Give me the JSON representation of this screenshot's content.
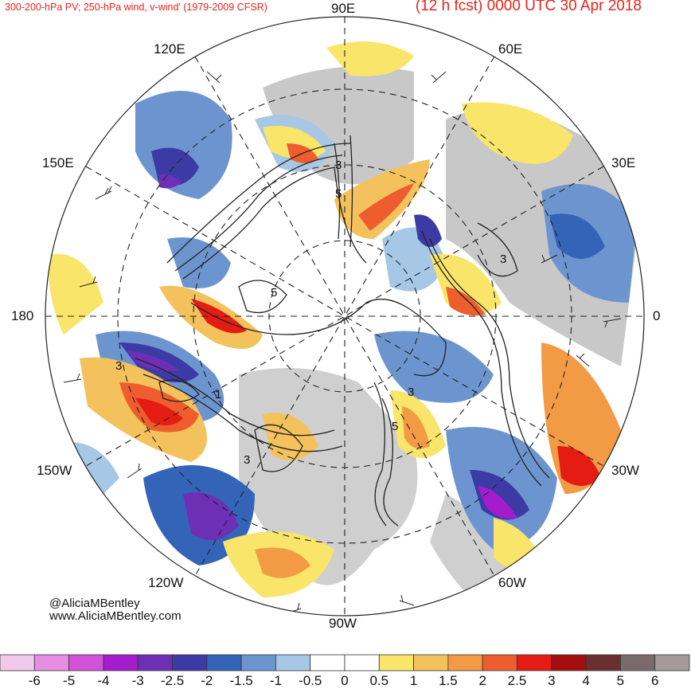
{
  "header": {
    "left_title": "300-200-hPa PV; 250-hPa wind, v-wind' (1979-2009 CFSR)",
    "right_title": "(12 h fcst) 0000 UTC 30 Apr 2018"
  },
  "longitude_labels": {
    "top": "90E",
    "upper_left": "120E",
    "upper_right": "60E",
    "left_upper": "150E",
    "right_upper": "30E",
    "left": "180",
    "right": "0",
    "left_lower": "150W",
    "right_lower": "30W",
    "lower_left": "120W",
    "lower_right": "60W",
    "bottom": "90W"
  },
  "credits": {
    "handle": "@AliciaMBentley",
    "website": "www.AliciaMBentley.com"
  },
  "contour_labels": [
    "3",
    "5",
    "5",
    "3",
    "3",
    "5",
    "3",
    "1",
    "3"
  ],
  "colorbar": {
    "ticks": [
      "-6",
      "-5",
      "-4",
      "-3",
      "-2.5",
      "-2",
      "-1.5",
      "-1",
      "-0.5",
      "0",
      "0.5",
      "1",
      "1.5",
      "2",
      "2.5",
      "3",
      "4",
      "5",
      "6"
    ],
    "colors": [
      "#f2c8ec",
      "#e58ee3",
      "#d252d8",
      "#a51ccc",
      "#6d2fb6",
      "#3c3aa5",
      "#3464b8",
      "#6c95cf",
      "#a6c7e5",
      "#ffffff",
      "#ffffff",
      "#f9e56a",
      "#f4c25c",
      "#f29a44",
      "#ee5d2e",
      "#e41c14",
      "#a50e0e",
      "#6b2f2f",
      "#7a6a6a",
      "#a59a9a"
    ]
  }
}
